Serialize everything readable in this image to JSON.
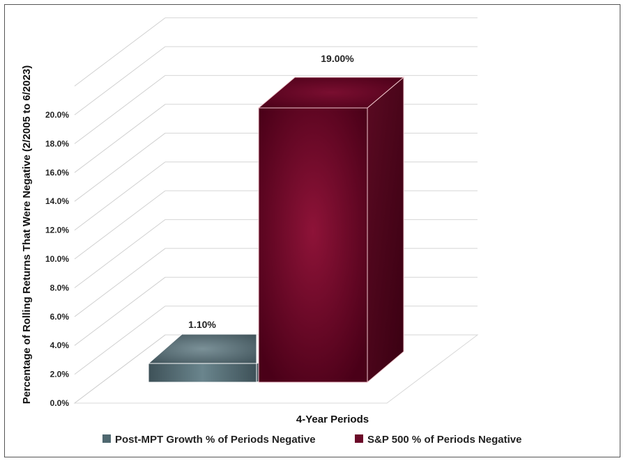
{
  "chart_data": {
    "type": "bar",
    "style": "3d",
    "categories": [
      "4-Year Periods"
    ],
    "series": [
      {
        "name": "Post-MPT Growth % of Periods Negative",
        "values": [
          1.1
        ],
        "color": "#4f6870"
      },
      {
        "name": "S&P 500 % of Periods Negative",
        "values": [
          19.0
        ],
        "color": "#6b0a28"
      }
    ],
    "data_labels": [
      "1.10%",
      "19.00%"
    ],
    "xlabel": "4-Year Periods",
    "ylabel": "Percentage of Rolling Returns That Were Negative (2/2005 to 6/2023)",
    "yticks": [
      "0.0%",
      "2.0%",
      "4.0%",
      "6.0%",
      "8.0%",
      "10.0%",
      "12.0%",
      "14.0%",
      "16.0%",
      "18.0%",
      "20.0%"
    ],
    "ylim": [
      0,
      20
    ],
    "grid": true,
    "legend_position": "bottom"
  }
}
